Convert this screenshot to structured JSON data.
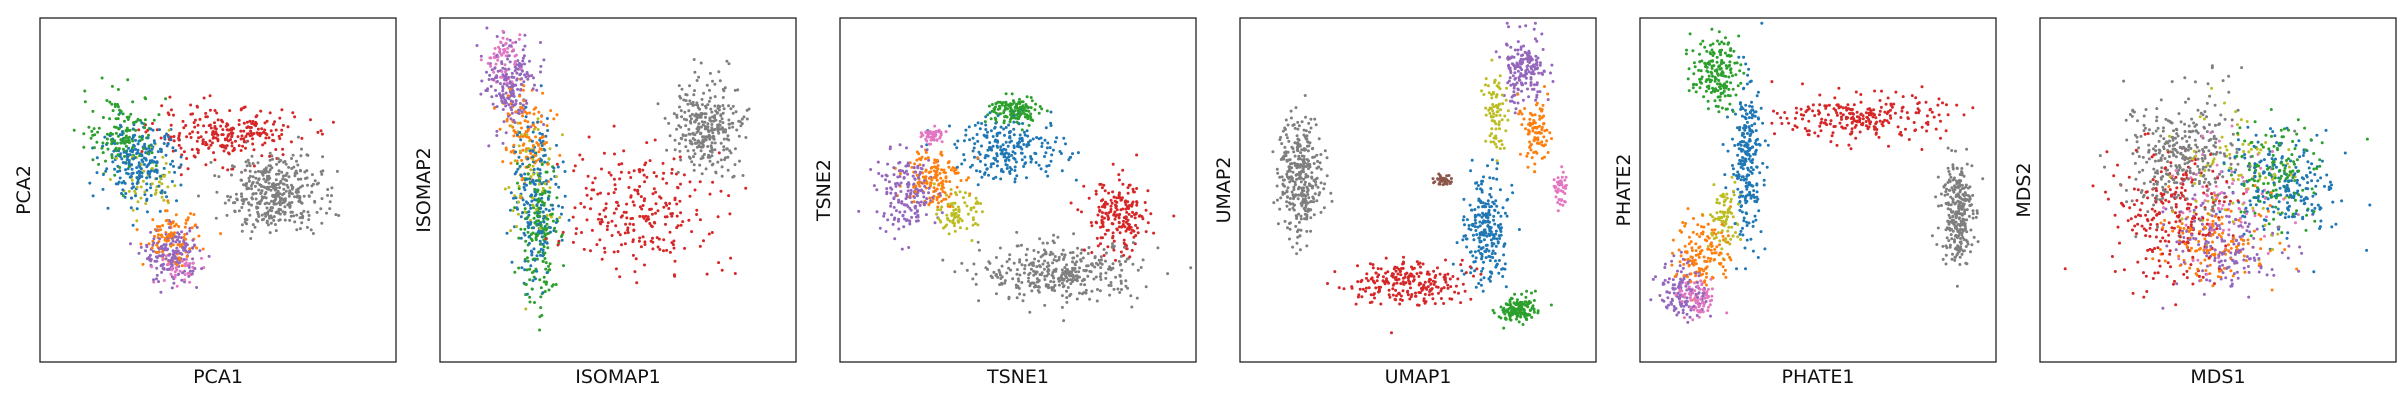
{
  "colors": {
    "tab_blue": "#1f77b4",
    "tab_orange": "#ff7f0e",
    "tab_green": "#2ca02c",
    "tab_red": "#d62728",
    "tab_purple": "#9467bd",
    "tab_brown": "#8c564b",
    "tab_pink": "#e377c2",
    "tab_gray": "#7f7f7f",
    "tab_olive": "#bcbd22"
  },
  "chart_data": [
    {
      "type": "scatter",
      "title": "",
      "xlabel": "PCA1",
      "ylabel": "PCA2",
      "xlim": [
        0,
        10
      ],
      "ylim": [
        0,
        10
      ],
      "ticks": "none",
      "grid": false,
      "legend": "none",
      "clusters": [
        {
          "color": "#7f7f7f",
          "center": [
            6.6,
            4.9
          ],
          "spread": [
            1.2,
            1.0
          ],
          "share": 0.28
        },
        {
          "color": "#d62728",
          "center": [
            5.2,
            6.6
          ],
          "spread": [
            1.9,
            0.7
          ],
          "share": 0.18
        },
        {
          "color": "#1f77b4",
          "center": [
            2.8,
            5.8
          ],
          "spread": [
            1.0,
            1.0
          ],
          "share": 0.17
        },
        {
          "color": "#2ca02c",
          "center": [
            2.3,
            6.7
          ],
          "spread": [
            0.9,
            1.0
          ],
          "share": 0.1
        },
        {
          "color": "#9467bd",
          "center": [
            3.7,
            3.1
          ],
          "spread": [
            0.7,
            0.7
          ],
          "share": 0.13
        },
        {
          "color": "#ff7f0e",
          "center": [
            3.7,
            3.6
          ],
          "spread": [
            0.7,
            0.7
          ],
          "share": 0.07
        },
        {
          "color": "#bcbd22",
          "center": [
            3.1,
            5.1
          ],
          "spread": [
            0.8,
            0.9
          ],
          "share": 0.04
        },
        {
          "color": "#e377c2",
          "center": [
            3.9,
            2.7
          ],
          "spread": [
            0.6,
            0.4
          ],
          "share": 0.03
        }
      ]
    },
    {
      "type": "scatter",
      "title": "",
      "xlabel": "ISOMAP1",
      "ylabel": "ISOMAP2",
      "xlim": [
        0,
        10
      ],
      "ylim": [
        0,
        10
      ],
      "ticks": "none",
      "grid": false,
      "legend": "none",
      "clusters": [
        {
          "color": "#7f7f7f",
          "center": [
            7.5,
            6.9
          ],
          "spread": [
            0.9,
            1.2
          ],
          "share": 0.22
        },
        {
          "color": "#d62728",
          "center": [
            5.6,
            4.4
          ],
          "spread": [
            1.8,
            1.6
          ],
          "share": 0.18
        },
        {
          "color": "#9467bd",
          "center": [
            2.0,
            8.0
          ],
          "spread": [
            0.6,
            1.1
          ],
          "share": 0.14
        },
        {
          "color": "#2ca02c",
          "center": [
            2.8,
            3.6
          ],
          "spread": [
            0.5,
            2.0
          ],
          "share": 0.13
        },
        {
          "color": "#1f77b4",
          "center": [
            2.7,
            4.8
          ],
          "spread": [
            0.6,
            2.2
          ],
          "share": 0.15
        },
        {
          "color": "#ff7f0e",
          "center": [
            2.4,
            6.6
          ],
          "spread": [
            0.6,
            1.3
          ],
          "share": 0.09
        },
        {
          "color": "#bcbd22",
          "center": [
            2.6,
            5.5
          ],
          "spread": [
            0.6,
            1.5
          ],
          "share": 0.05
        },
        {
          "color": "#e377c2",
          "center": [
            1.8,
            8.8
          ],
          "spread": [
            0.4,
            0.6
          ],
          "share": 0.04
        }
      ]
    },
    {
      "type": "scatter",
      "title": "",
      "xlabel": "TSNE1",
      "ylabel": "TSNE2",
      "xlim": [
        0,
        10
      ],
      "ylim": [
        0,
        10
      ],
      "ticks": "none",
      "grid": false,
      "legend": "none",
      "clusters": [
        {
          "color": "#7f7f7f",
          "center": [
            6.2,
            2.6
          ],
          "spread": [
            2.0,
            0.75
          ],
          "share": 0.26
        },
        {
          "color": "#d62728",
          "center": [
            7.8,
            4.2
          ],
          "spread": [
            0.8,
            1.0
          ],
          "share": 0.14
        },
        {
          "color": "#1f77b4",
          "center": [
            4.8,
            6.2
          ],
          "spread": [
            1.4,
            0.8
          ],
          "share": 0.17
        },
        {
          "color": "#9467bd",
          "center": [
            1.9,
            4.9
          ],
          "spread": [
            0.8,
            1.0
          ],
          "share": 0.13
        },
        {
          "color": "#ff7f0e",
          "center": [
            2.6,
            5.4
          ],
          "spread": [
            0.7,
            0.8
          ],
          "share": 0.1
        },
        {
          "color": "#2ca02c",
          "center": [
            4.9,
            7.3
          ],
          "spread": [
            0.65,
            0.4
          ],
          "share": 0.1
        },
        {
          "color": "#bcbd22",
          "center": [
            3.3,
            4.3
          ],
          "spread": [
            0.5,
            0.5
          ],
          "share": 0.06
        },
        {
          "color": "#e377c2",
          "center": [
            2.6,
            6.6
          ],
          "spread": [
            0.25,
            0.2
          ],
          "share": 0.04
        }
      ]
    },
    {
      "type": "scatter",
      "title": "",
      "xlabel": "UMAP1",
      "ylabel": "UMAP2",
      "xlim": [
        0,
        10
      ],
      "ylim": [
        0,
        10
      ],
      "ticks": "none",
      "grid": false,
      "legend": "none",
      "clusters": [
        {
          "color": "#7f7f7f",
          "center": [
            1.7,
            5.4
          ],
          "spread": [
            0.55,
            1.6
          ],
          "share": 0.24
        },
        {
          "color": "#d62728",
          "center": [
            4.7,
            2.3
          ],
          "spread": [
            1.4,
            0.55
          ],
          "share": 0.17
        },
        {
          "color": "#1f77b4",
          "center": [
            6.9,
            3.8
          ],
          "spread": [
            0.55,
            1.5
          ],
          "share": 0.17
        },
        {
          "color": "#9467bd",
          "center": [
            8.0,
            8.5
          ],
          "spread": [
            0.55,
            0.9
          ],
          "share": 0.13
        },
        {
          "color": "#ff7f0e",
          "center": [
            8.3,
            6.7
          ],
          "spread": [
            0.45,
            0.8
          ],
          "share": 0.07
        },
        {
          "color": "#2ca02c",
          "center": [
            7.8,
            1.5
          ],
          "spread": [
            0.45,
            0.35
          ],
          "share": 0.1
        },
        {
          "color": "#bcbd22",
          "center": [
            7.2,
            7.4
          ],
          "spread": [
            0.3,
            1.0
          ],
          "share": 0.06
        },
        {
          "color": "#e377c2",
          "center": [
            9.0,
            5.0
          ],
          "spread": [
            0.2,
            0.6
          ],
          "share": 0.03
        },
        {
          "color": "#8c564b",
          "center": [
            5.7,
            5.3
          ],
          "spread": [
            0.25,
            0.12
          ],
          "share": 0.03
        }
      ]
    },
    {
      "type": "scatter",
      "title": "",
      "xlabel": "PHATE1",
      "ylabel": "PHATE2",
      "xlim": [
        0,
        10
      ],
      "ylim": [
        0,
        10
      ],
      "ticks": "none",
      "grid": false,
      "legend": "none",
      "clusters": [
        {
          "color": "#7f7f7f",
          "center": [
            8.9,
            4.4
          ],
          "spread": [
            0.4,
            1.4
          ],
          "share": 0.2
        },
        {
          "color": "#d62728",
          "center": [
            6.3,
            7.1
          ],
          "spread": [
            2.0,
            0.6
          ],
          "share": 0.18
        },
        {
          "color": "#1f77b4",
          "center": [
            3.0,
            5.9
          ],
          "spread": [
            0.4,
            2.1
          ],
          "share": 0.18
        },
        {
          "color": "#2ca02c",
          "center": [
            2.1,
            8.4
          ],
          "spread": [
            0.6,
            0.9
          ],
          "share": 0.13
        },
        {
          "color": "#ff7f0e",
          "center": [
            1.8,
            3.2
          ],
          "spread": [
            0.7,
            1.0
          ],
          "share": 0.1
        },
        {
          "color": "#9467bd",
          "center": [
            1.2,
            2.1
          ],
          "spread": [
            0.6,
            0.8
          ],
          "share": 0.09
        },
        {
          "color": "#bcbd22",
          "center": [
            2.4,
            4.2
          ],
          "spread": [
            0.4,
            0.9
          ],
          "share": 0.06
        },
        {
          "color": "#e377c2",
          "center": [
            1.6,
            1.8
          ],
          "spread": [
            0.5,
            0.5
          ],
          "share": 0.06
        }
      ]
    },
    {
      "type": "scatter",
      "title": "",
      "xlabel": "MDS1",
      "ylabel": "MDS2",
      "xlim": [
        0,
        10
      ],
      "ylim": [
        0,
        10
      ],
      "ticks": "none",
      "grid": false,
      "legend": "none",
      "clusters": [
        {
          "color": "#7f7f7f",
          "center": [
            4.0,
            6.0
          ],
          "spread": [
            1.5,
            1.6
          ],
          "share": 0.24
        },
        {
          "color": "#d62728",
          "center": [
            3.7,
            4.3
          ],
          "spread": [
            1.6,
            1.7
          ],
          "share": 0.17
        },
        {
          "color": "#1f77b4",
          "center": [
            6.9,
            5.0
          ],
          "spread": [
            1.3,
            1.4
          ],
          "share": 0.15
        },
        {
          "color": "#2ca02c",
          "center": [
            6.7,
            5.5
          ],
          "spread": [
            1.2,
            1.4
          ],
          "share": 0.1
        },
        {
          "color": "#9467bd",
          "center": [
            5.2,
            3.4
          ],
          "spread": [
            1.4,
            1.2
          ],
          "share": 0.12
        },
        {
          "color": "#ff7f0e",
          "center": [
            5.0,
            3.6
          ],
          "spread": [
            1.4,
            1.2
          ],
          "share": 0.1
        },
        {
          "color": "#bcbd22",
          "center": [
            5.5,
            5.3
          ],
          "spread": [
            1.6,
            1.6
          ],
          "share": 0.06
        },
        {
          "color": "#e377c2",
          "center": [
            5.2,
            4.6
          ],
          "spread": [
            1.6,
            1.6
          ],
          "share": 0.06
        }
      ]
    }
  ]
}
